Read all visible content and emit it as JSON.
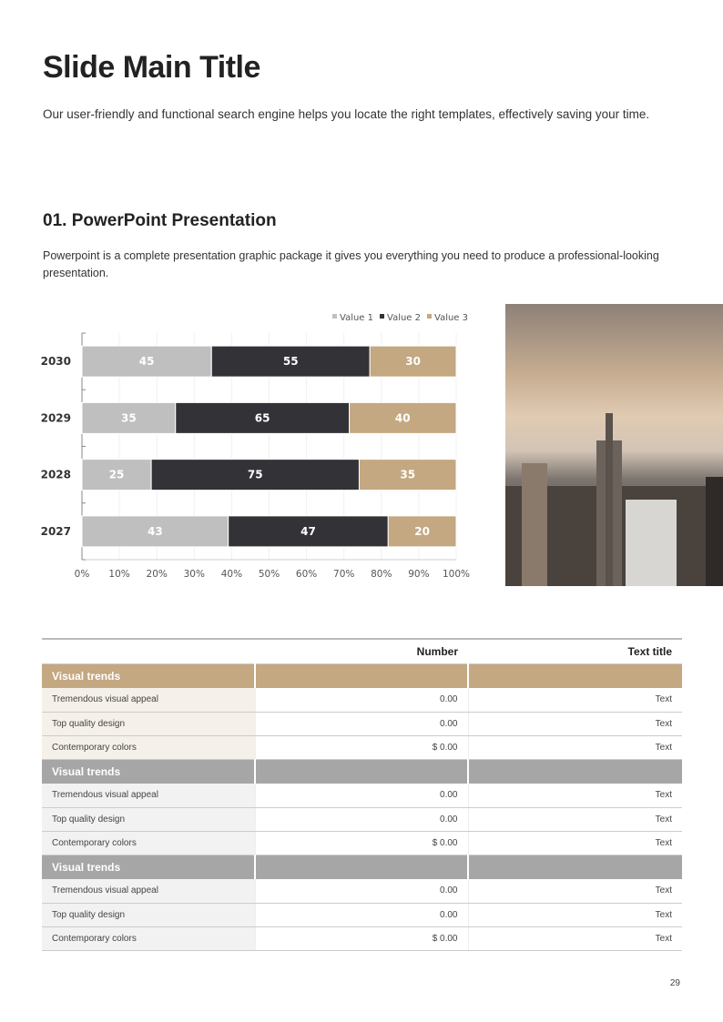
{
  "title": "Slide Main Title",
  "subtitle": "Our user-friendly and functional search engine helps you locate the right templates, effectively saving your time.",
  "section": {
    "title": "01. PowerPoint Presentation",
    "text": "Powerpoint is a complete presentation graphic package it gives you everything you need to produce a professional-looking presentation."
  },
  "chart_data": {
    "type": "bar",
    "orientation": "horizontal",
    "stacked": "percent",
    "categories": [
      "2030",
      "2029",
      "2028",
      "2027"
    ],
    "series": [
      {
        "name": "Value  1",
        "color": "#bfbfbf",
        "values": [
          45,
          35,
          25,
          43
        ]
      },
      {
        "name": "Value  2",
        "color": "#333236",
        "values": [
          55,
          65,
          75,
          47
        ]
      },
      {
        "name": "Value 3",
        "color": "#c4a881",
        "values": [
          30,
          40,
          35,
          20
        ]
      }
    ],
    "xticks": [
      "0%",
      "10%",
      "20%",
      "30%",
      "40%",
      "50%",
      "60%",
      "70%",
      "80%",
      "90%",
      "100%"
    ],
    "xlim": [
      0,
      100
    ],
    "legend": "top-right"
  },
  "table": {
    "headers": [
      "",
      "Number",
      "Text title"
    ],
    "groups": [
      {
        "label": "Visual trends",
        "rows": [
          [
            "Tremendous visual appeal",
            "0.00",
            "Text"
          ],
          [
            "Top quality design",
            "0.00",
            "Text"
          ],
          [
            "Contemporary colors",
            "$ 0.00",
            "Text"
          ]
        ]
      },
      {
        "label": "Visual trends",
        "rows": [
          [
            "Tremendous visual appeal",
            "0.00",
            "Text"
          ],
          [
            "Top quality design",
            "0.00",
            "Text"
          ],
          [
            "Contemporary colors",
            "$ 0.00",
            "Text"
          ]
        ]
      },
      {
        "label": "Visual trends",
        "rows": [
          [
            "Tremendous visual appeal",
            "0.00",
            "Text"
          ],
          [
            "Top quality design",
            "0.00",
            "Text"
          ],
          [
            "Contemporary colors",
            "$ 0.00",
            "Text"
          ]
        ]
      }
    ]
  },
  "page_number": "29"
}
